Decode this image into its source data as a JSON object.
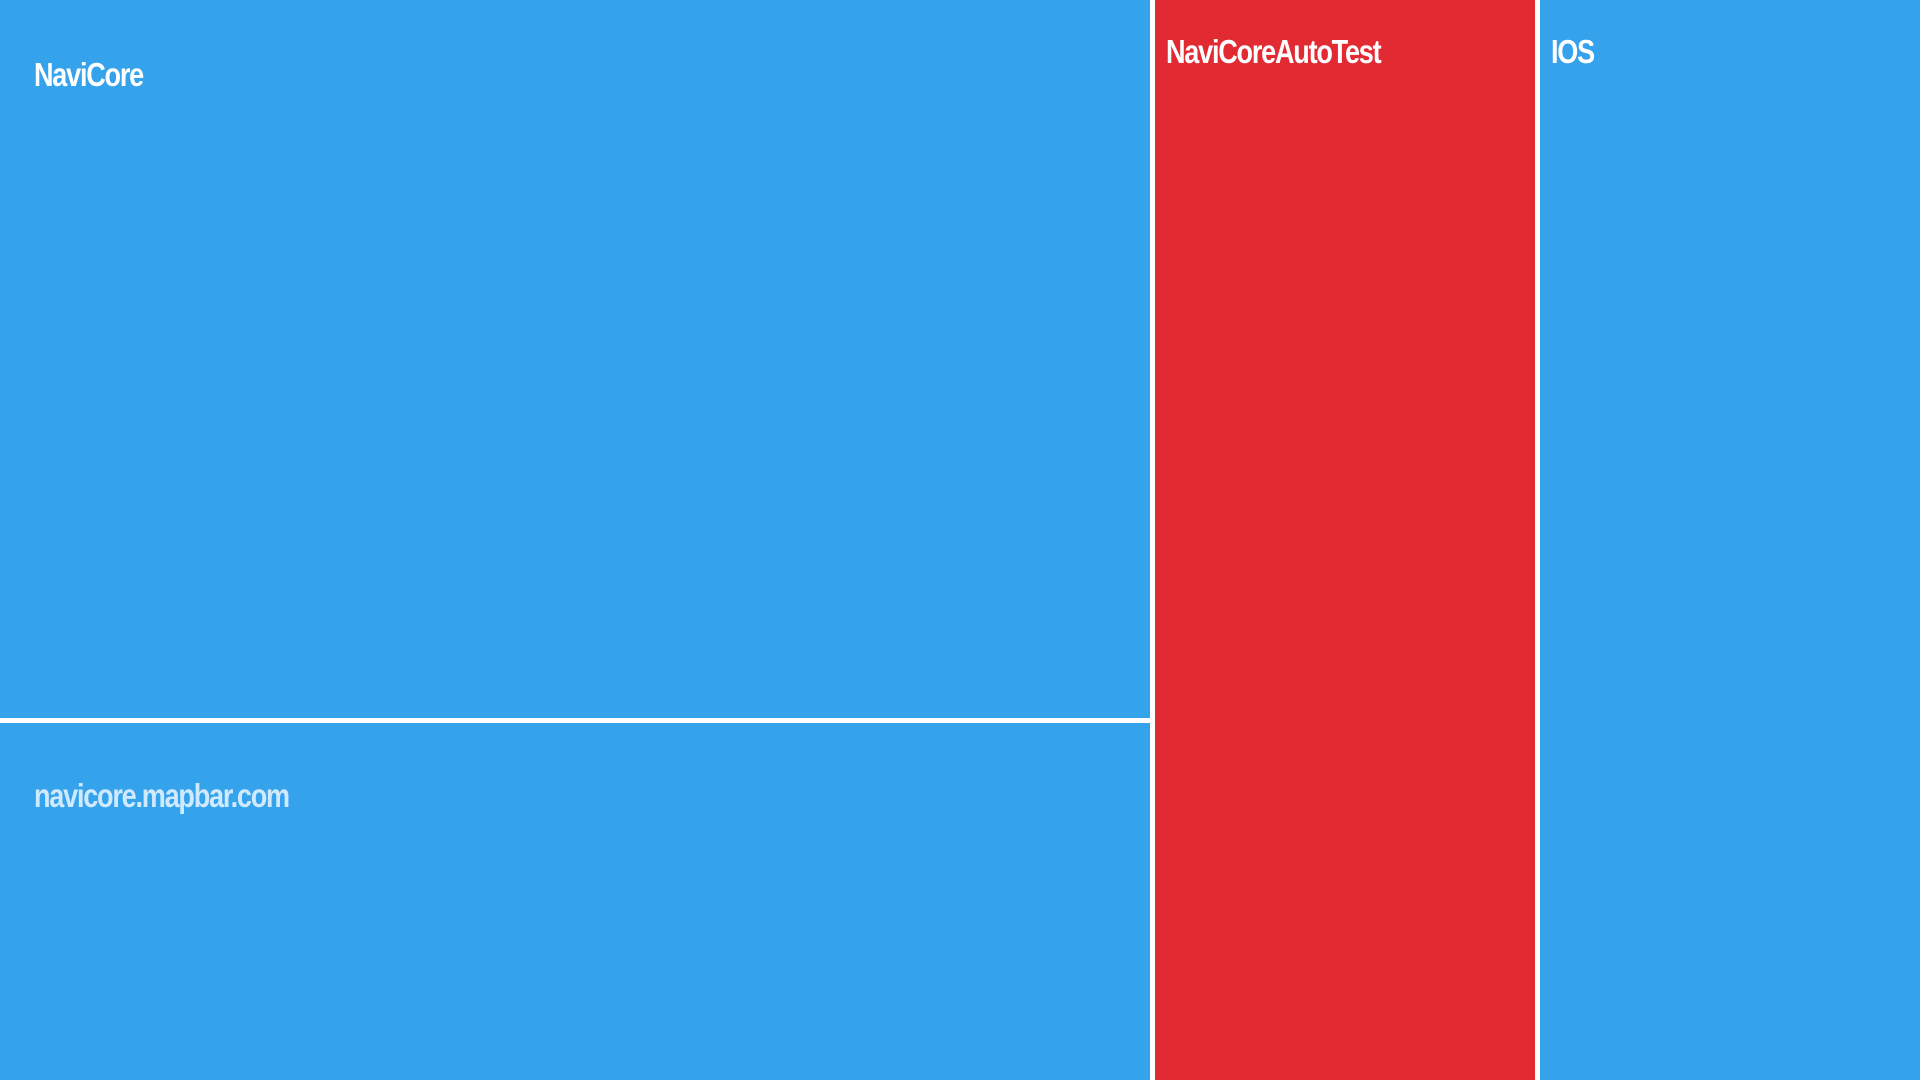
{
  "tiles": [
    {
      "id": "navicore",
      "label": "NaviCore",
      "color": "#35a2ec",
      "label_tone": "light"
    },
    {
      "id": "navicore-mapbar",
      "label": "navicore.mapbar.com",
      "color": "#35a2ec",
      "label_tone": "muted"
    },
    {
      "id": "navicore-autotest",
      "label": "NaviCoreAutoTest",
      "color": "#e22a32",
      "label_tone": "light"
    },
    {
      "id": "ios",
      "label": "IOS",
      "color": "#35a2ec",
      "label_tone": "light"
    }
  ],
  "colors": {
    "tile_blue": "#35a2ec",
    "tile_red": "#e22a32",
    "divider": "#ffffff",
    "label_light": "#ffffff",
    "label_muted": "#cfe9ff"
  }
}
